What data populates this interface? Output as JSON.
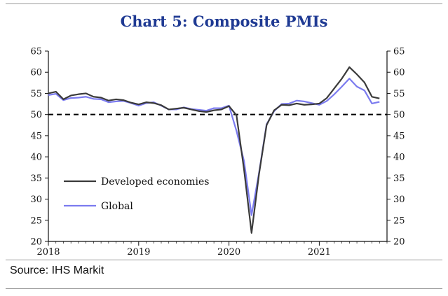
{
  "title": "Chart 5: Composite PMIs",
  "source": "Source: IHS Markit",
  "chart_data": {
    "type": "line",
    "title": "Chart 5: Composite PMIs",
    "x_start": "2018-01",
    "x_end": "2021-09",
    "x_ticks": [
      "2018",
      "2019",
      "2020",
      "2021"
    ],
    "y_ticks": [
      "65",
      "60",
      "55",
      "50",
      "45",
      "40",
      "35",
      "30",
      "25",
      "20"
    ],
    "ylim": [
      20,
      65
    ],
    "reference_line": 50,
    "legend_position": "lower-left",
    "series": [
      {
        "name": "Developed economies",
        "color": "#3a3a3a",
        "values": [
          55.0,
          55.4,
          53.6,
          54.5,
          54.8,
          55.0,
          54.2,
          54.0,
          53.3,
          53.6,
          53.4,
          52.8,
          52.4,
          52.9,
          52.7,
          52.2,
          51.2,
          51.4,
          51.6,
          51.2,
          50.8,
          50.6,
          51.0,
          51.2,
          52.0,
          49.8,
          37.0,
          22.0,
          36.0,
          47.5,
          51.0,
          52.3,
          52.2,
          52.6,
          52.3,
          52.4,
          52.6,
          53.9,
          56.2,
          58.5,
          61.2,
          59.5,
          57.6,
          54.2,
          53.8
        ]
      },
      {
        "name": "Global",
        "color": "#7b7bef",
        "values": [
          54.6,
          54.9,
          53.4,
          53.9,
          54.0,
          54.2,
          53.7,
          53.6,
          52.9,
          53.1,
          53.2,
          52.7,
          52.1,
          52.7,
          52.9,
          52.1,
          51.2,
          51.2,
          51.7,
          51.3,
          51.1,
          50.9,
          51.5,
          51.5,
          52.1,
          46.1,
          39.0,
          26.2,
          36.3,
          47.7,
          50.8,
          52.5,
          52.6,
          53.3,
          53.1,
          52.7,
          52.3,
          53.2,
          54.8,
          56.6,
          58.5,
          56.6,
          55.7,
          52.6,
          53.0
        ]
      }
    ]
  }
}
